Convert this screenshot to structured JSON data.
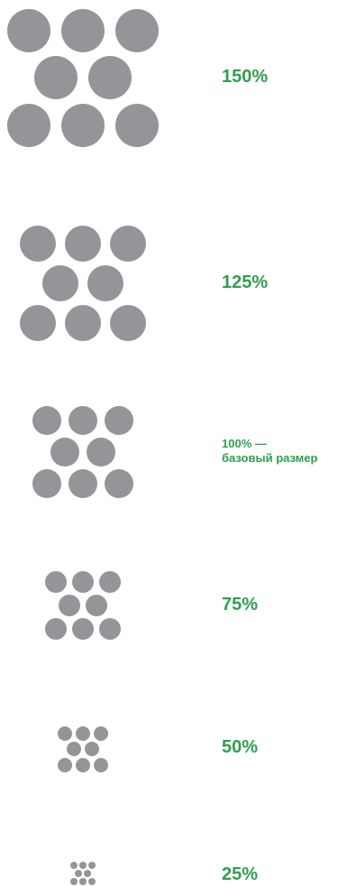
{
  "colors": {
    "dot": "#959499",
    "label": "#2e9f4d"
  },
  "scales": [
    {
      "percent": 150,
      "label_lines": [
        "150%"
      ]
    },
    {
      "percent": 125,
      "label_lines": [
        "125%"
      ]
    },
    {
      "percent": 100,
      "label_lines": [
        "100% —",
        "базовый размер"
      ]
    },
    {
      "percent": 75,
      "label_lines": [
        "75%"
      ]
    },
    {
      "percent": 50,
      "label_lines": [
        "50%"
      ]
    },
    {
      "percent": 25,
      "label_lines": [
        "25%"
      ]
    }
  ],
  "pattern": {
    "rows": [
      3,
      2,
      3
    ],
    "dot_count": 8
  }
}
